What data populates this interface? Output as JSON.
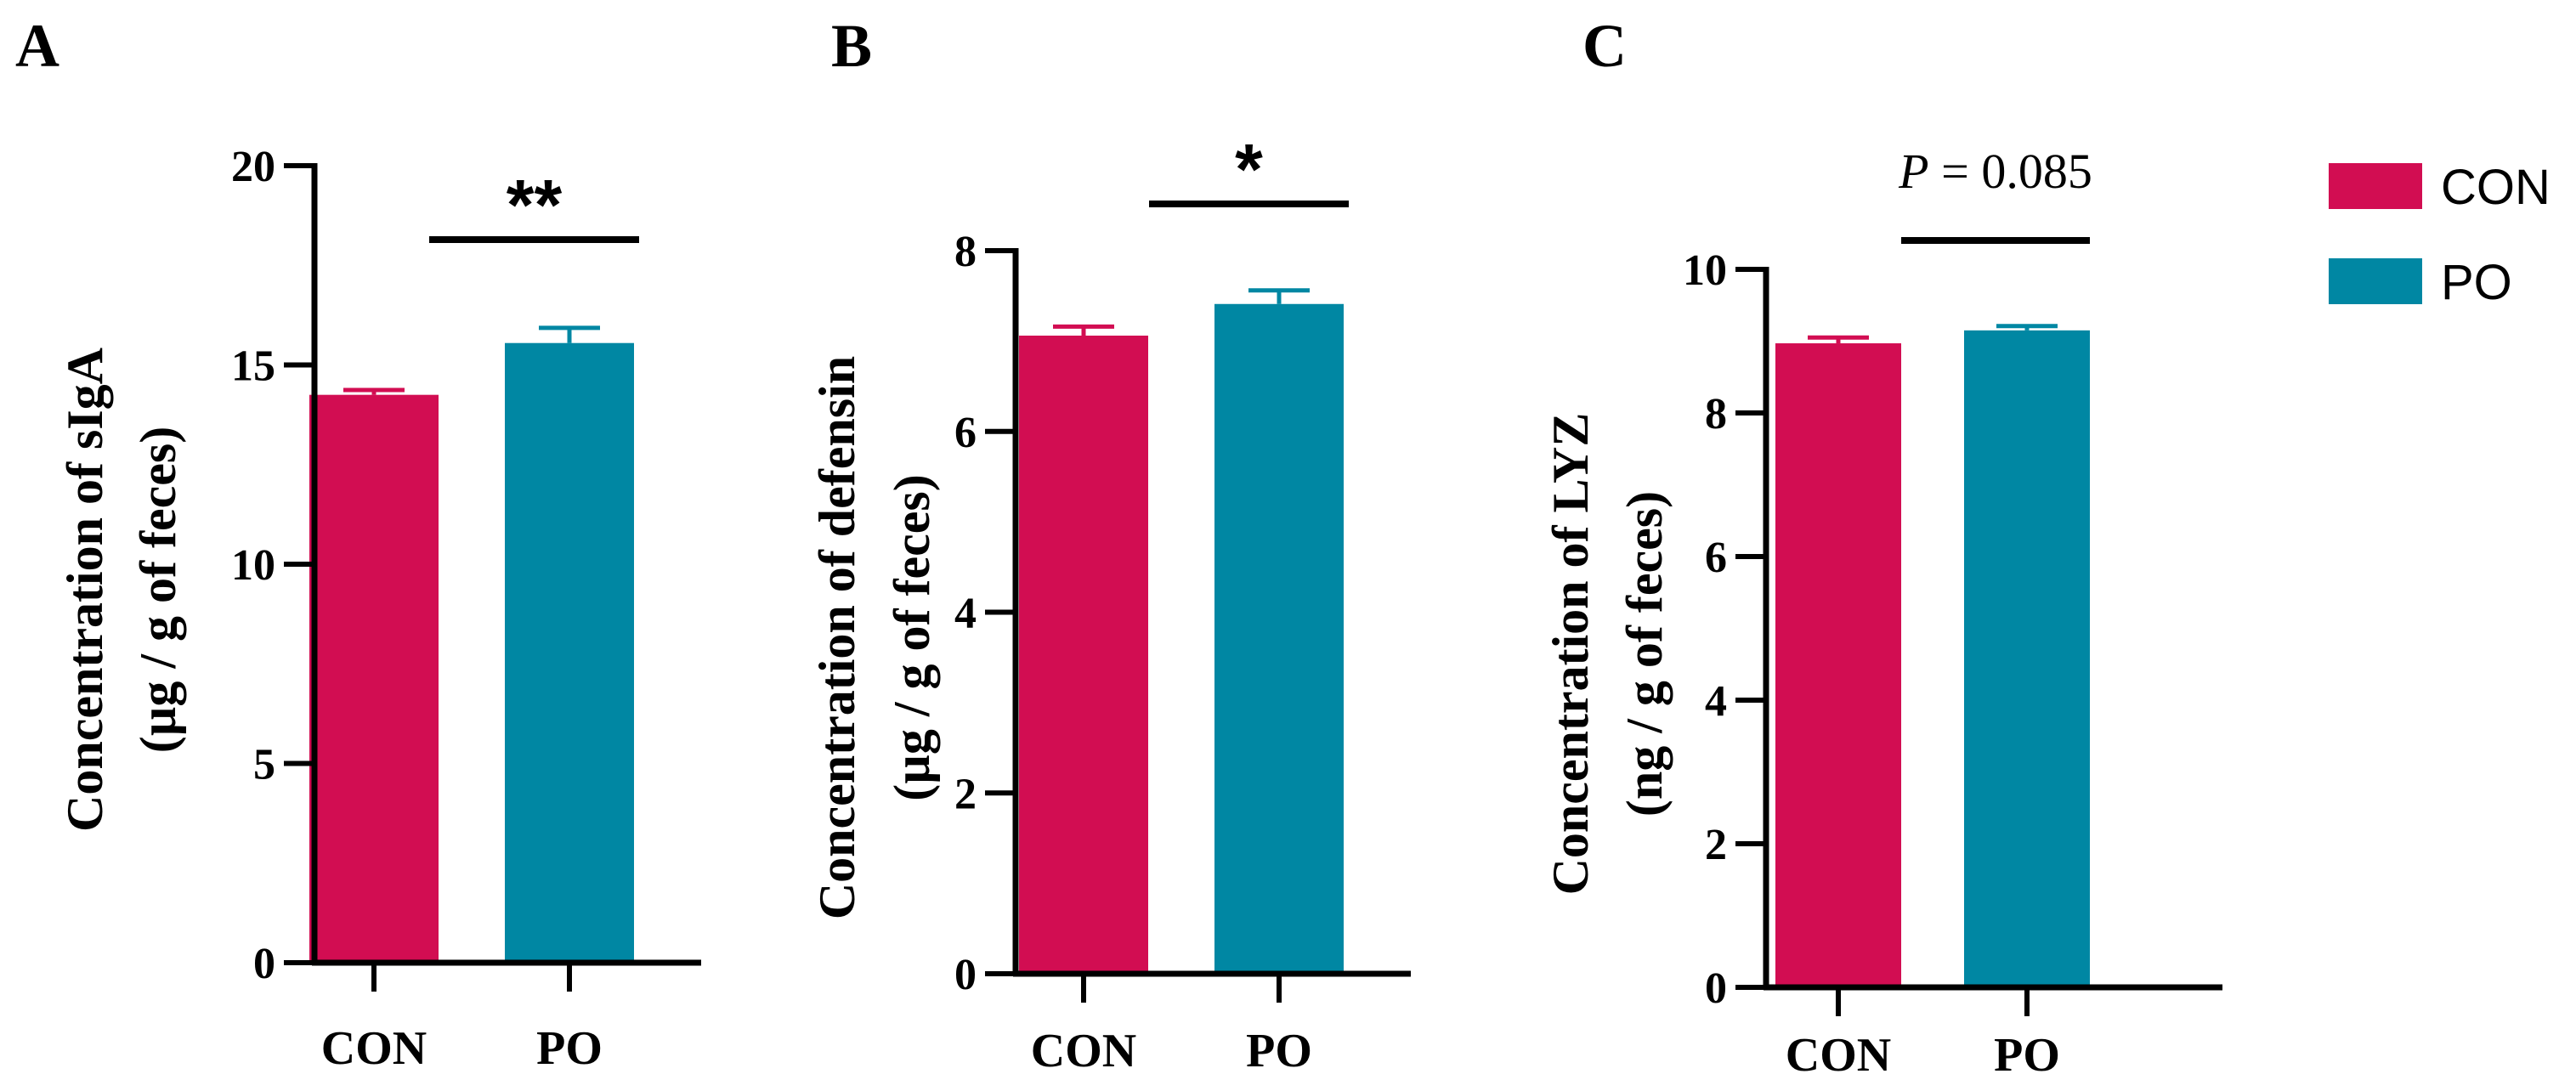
{
  "legend": [
    {
      "label": "CON",
      "color": "#d20d52"
    },
    {
      "label": "PO",
      "color": "#0087a3"
    }
  ],
  "chart_data": [
    {
      "type": "bar",
      "panel": "A",
      "ylabel_line1": "Concentration of sIgA",
      "ylabel_line2": "(µg / g of feces)",
      "categories": [
        "CON",
        "PO"
      ],
      "values": [
        14.25,
        15.55
      ],
      "errors": [
        0.12,
        0.38
      ],
      "colors": [
        "#d20d52",
        "#0087a3"
      ],
      "ylim": [
        0,
        20
      ],
      "yticks": [
        0,
        5,
        10,
        15,
        20
      ],
      "significance": "**"
    },
    {
      "type": "bar",
      "panel": "B",
      "ylabel_line1": "Concentration of defensin",
      "ylabel_line2": "(µg / g of feces)",
      "categories": [
        "CON",
        "PO"
      ],
      "values": [
        7.06,
        7.41
      ],
      "errors": [
        0.1,
        0.15
      ],
      "colors": [
        "#d20d52",
        "#0087a3"
      ],
      "ylim": [
        0,
        8
      ],
      "yticks": [
        0,
        2,
        4,
        6,
        8
      ],
      "significance": "*"
    },
    {
      "type": "bar",
      "panel": "C",
      "ylabel_line1": "Concentration of LYZ",
      "ylabel_line2": "(ng / g of feces)",
      "categories": [
        "CON",
        "PO"
      ],
      "values": [
        8.97,
        9.15
      ],
      "errors": [
        0.08,
        0.06
      ],
      "colors": [
        "#d20d52",
        "#0087a3"
      ],
      "ylim": [
        0,
        10
      ],
      "yticks": [
        0,
        2,
        4,
        6,
        8,
        10
      ],
      "p_prefix": "P",
      "p_rest": " = 0.085"
    }
  ]
}
